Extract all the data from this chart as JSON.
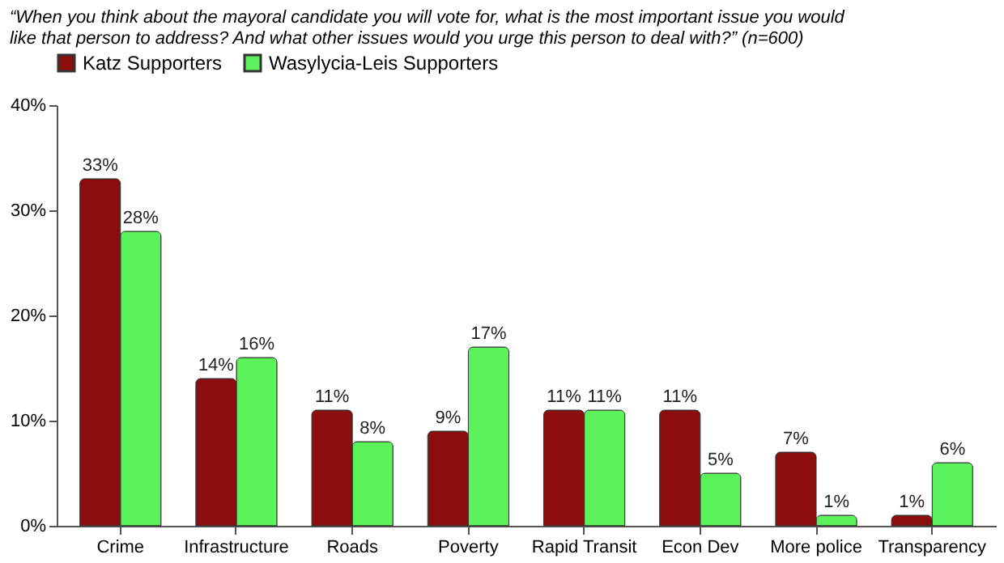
{
  "chart_data": {
    "type": "bar",
    "title": [
      "“When you think about the mayoral candidate you will vote for, what is the most important issue you would",
      "like that person to address?  And what other issues would you urge this person to deal with?” (n=600)"
    ],
    "categories": [
      "Crime",
      "Infrastructure",
      "Roads",
      "Poverty",
      "Rapid Transit",
      "Econ Dev",
      "More police",
      "Transparency"
    ],
    "series": [
      {
        "name": "Katz Supporters",
        "color": "#8b0d0d",
        "values": [
          33,
          14,
          11,
          9,
          11,
          11,
          7,
          1
        ],
        "value_labels": [
          "33%",
          "14%",
          "11%",
          "9%",
          "11%",
          "11%",
          "7%",
          "1%"
        ]
      },
      {
        "name": "Wasylycia-Leis Supporters",
        "color": "#5cf25c",
        "values": [
          28,
          16,
          8,
          17,
          11,
          5,
          1,
          6
        ],
        "value_labels": [
          "28%",
          "16%",
          "8%",
          "17%",
          "11%",
          "5%",
          "1%",
          "6%"
        ]
      }
    ],
    "ylim": [
      0,
      40
    ],
    "yticks": [
      {
        "value": 0,
        "label": "0%"
      },
      {
        "value": 10,
        "label": "10%"
      },
      {
        "value": 20,
        "label": "20%"
      },
      {
        "value": 30,
        "label": "30%"
      },
      {
        "value": 40,
        "label": "40%"
      }
    ],
    "grid": false,
    "legend": "top"
  }
}
